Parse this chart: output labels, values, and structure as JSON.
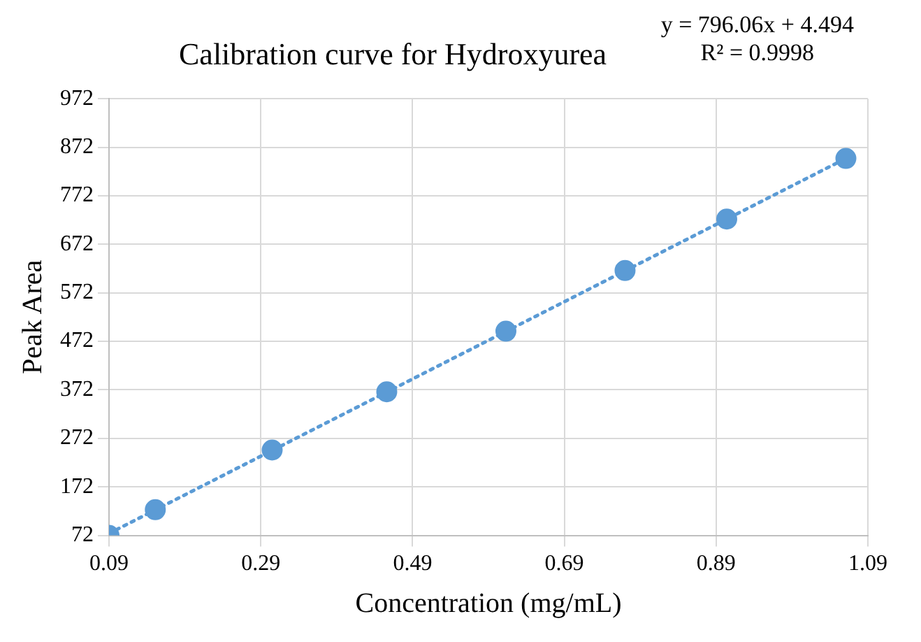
{
  "chart_data": {
    "type": "scatter",
    "title": "Calibration curve for Hydroxyurea",
    "xlabel": "Concentration (mg/mL)",
    "ylabel": "Peak Area",
    "annotations": [
      "y = 796.06x + 4.494",
      "R² = 0.9998"
    ],
    "xlim": [
      0.09,
      1.09
    ],
    "xticks": [
      0.09,
      0.29,
      0.49,
      0.69,
      0.89,
      1.09
    ],
    "ylim": [
      72,
      972
    ],
    "yticks": [
      72,
      172,
      272,
      372,
      472,
      572,
      672,
      772,
      872,
      972
    ],
    "grid": true,
    "legend": false,
    "series": [
      {
        "type": "scatter",
        "color": "#5b9bd5",
        "marker": "circle",
        "x": [
          0.09,
          0.151,
          0.305,
          0.456,
          0.613,
          0.77,
          0.904,
          1.061
        ],
        "values": [
          72,
          125,
          248,
          368,
          493,
          618,
          724,
          849
        ]
      },
      {
        "type": "line",
        "color": "#5b9bd5",
        "marker": "none",
        "line_style": "dotted",
        "x": [
          0.09,
          1.061
        ],
        "values": [
          76,
          849
        ]
      }
    ]
  }
}
